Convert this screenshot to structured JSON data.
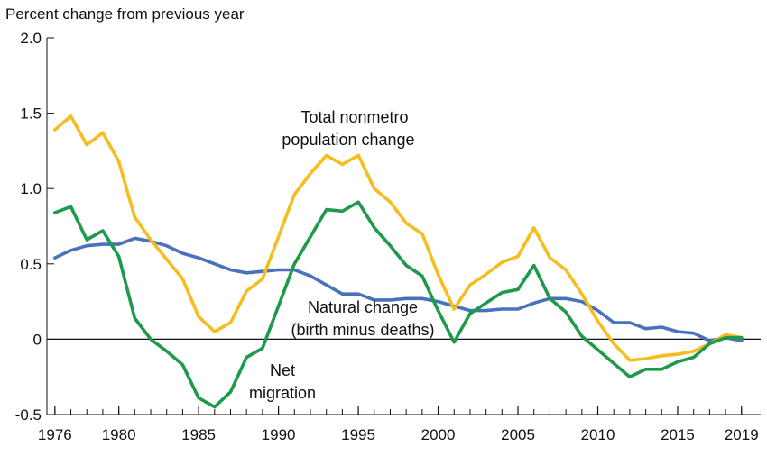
{
  "chart_data": {
    "type": "line",
    "ylabel": "Percent change from previous year",
    "x_ticks": [
      "1976",
      "1980",
      "1985",
      "1990",
      "1995",
      "2000",
      "2005",
      "2010",
      "2015",
      "2019"
    ],
    "y_ticks": [
      "2.0",
      "1.5",
      "1.0",
      "0.5",
      "0",
      "-0.5"
    ],
    "xlim": [
      1975.5,
      2020.2
    ],
    "ylim": [
      -0.5,
      2.0
    ],
    "grid": false,
    "colors": {
      "total": "#f5bd1f",
      "natural": "#4a72bc",
      "net": "#1d9a4b"
    },
    "annotations": {
      "total_line1": "Total nonmetro",
      "total_line2": "population change",
      "natural_line1": "Natural change",
      "natural_line2": "(birth minus deaths)",
      "net_line1": "Net",
      "net_line2": "migration"
    },
    "x": [
      1976,
      1977,
      1978,
      1979,
      1980,
      1981,
      1982,
      1983,
      1984,
      1985,
      1986,
      1987,
      1988,
      1989,
      1990,
      1991,
      1992,
      1993,
      1994,
      1995,
      1996,
      1997,
      1998,
      1999,
      2000,
      2001,
      2002,
      2003,
      2004,
      2005,
      2006,
      2007,
      2008,
      2009,
      2010,
      2011,
      2012,
      2013,
      2014,
      2015,
      2016,
      2017,
      2018,
      2019
    ],
    "series": [
      {
        "key": "total",
        "values": [
          1.39,
          1.48,
          1.29,
          1.37,
          1.18,
          0.81,
          0.66,
          0.53,
          0.4,
          0.15,
          0.05,
          0.11,
          0.32,
          0.4,
          0.68,
          0.96,
          1.1,
          1.22,
          1.16,
          1.22,
          1.0,
          0.91,
          0.77,
          0.7,
          0.43,
          0.2,
          0.36,
          0.43,
          0.51,
          0.55,
          0.74,
          0.54,
          0.46,
          0.3,
          0.12,
          -0.03,
          -0.14,
          -0.13,
          -0.11,
          -0.1,
          -0.08,
          -0.03,
          0.03,
          0.01
        ]
      },
      {
        "key": "natural",
        "values": [
          0.54,
          0.59,
          0.62,
          0.63,
          0.63,
          0.67,
          0.65,
          0.62,
          0.57,
          0.54,
          0.5,
          0.46,
          0.44,
          0.45,
          0.46,
          0.46,
          0.42,
          0.36,
          0.3,
          0.3,
          0.26,
          0.26,
          0.27,
          0.27,
          0.25,
          0.22,
          0.19,
          0.19,
          0.2,
          0.2,
          0.24,
          0.27,
          0.27,
          0.25,
          0.19,
          0.11,
          0.11,
          0.07,
          0.08,
          0.05,
          0.04,
          -0.01,
          0.01,
          -0.01
        ]
      },
      {
        "key": "net",
        "values": [
          0.84,
          0.88,
          0.66,
          0.72,
          0.55,
          0.14,
          0.0,
          -0.08,
          -0.17,
          -0.39,
          -0.45,
          -0.35,
          -0.12,
          -0.06,
          0.22,
          0.5,
          0.68,
          0.86,
          0.85,
          0.91,
          0.74,
          0.62,
          0.49,
          0.42,
          0.19,
          -0.02,
          0.17,
          0.24,
          0.31,
          0.33,
          0.49,
          0.27,
          0.18,
          0.02,
          -0.07,
          -0.16,
          -0.25,
          -0.2,
          -0.2,
          -0.15,
          -0.12,
          -0.03,
          0.01,
          0.01
        ]
      }
    ]
  }
}
